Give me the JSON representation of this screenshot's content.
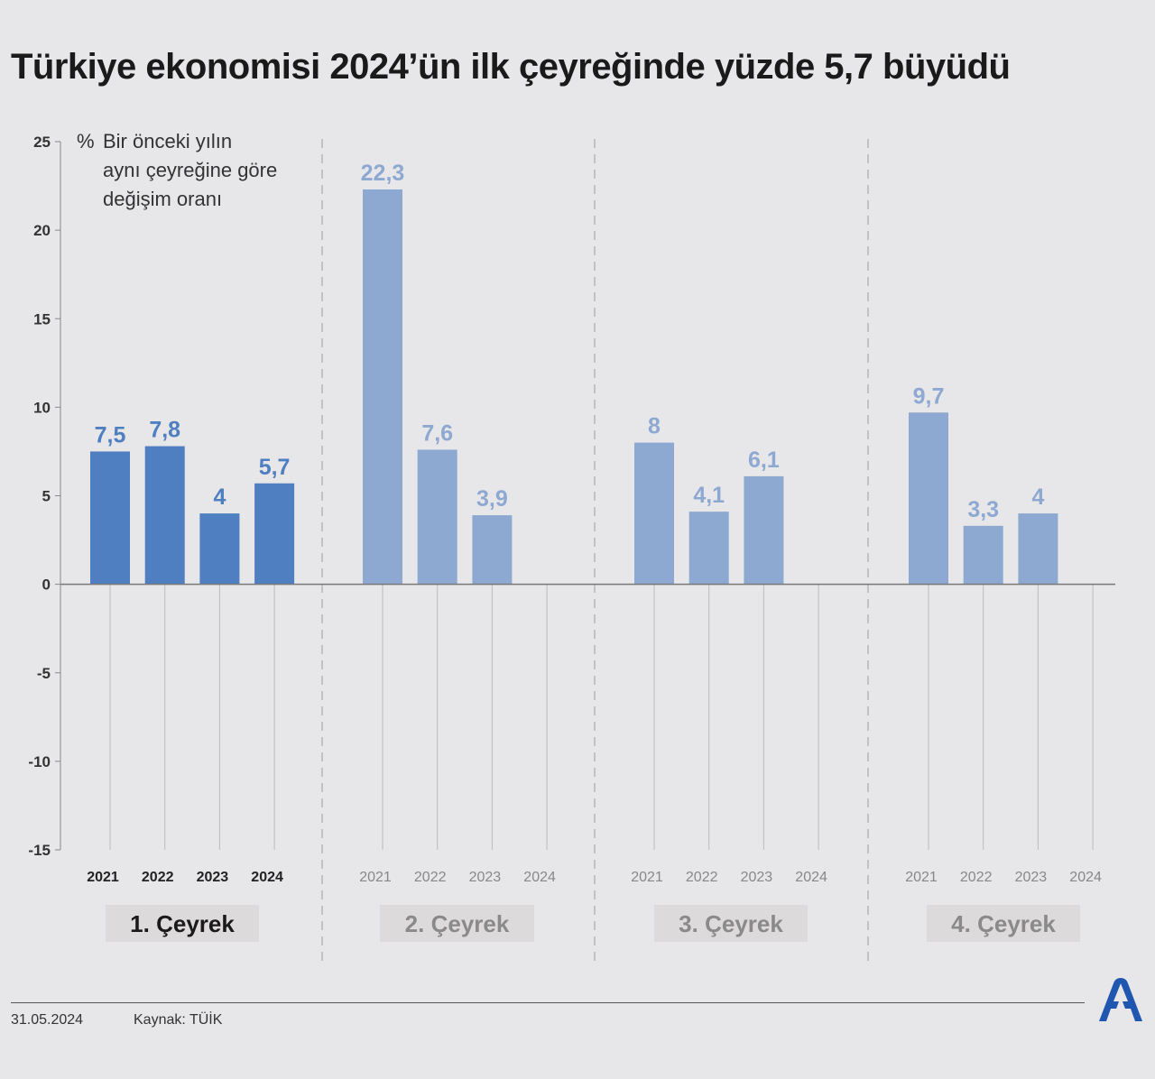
{
  "title": "Türkiye ekonomisi 2024’ün ilk çeyreğinde yüzde 5,7 büyüdü",
  "chart_data": {
    "type": "bar",
    "ylabel_prefix": "%",
    "ylabel_lines": [
      "Bir önceki yılın",
      "aynı çeyreğine göre",
      "değişim oranı"
    ],
    "ylim": [
      -15,
      25
    ],
    "yticks": [
      25,
      20,
      15,
      10,
      5,
      0,
      -5,
      -10,
      -15
    ],
    "years": [
      "2021",
      "2022",
      "2023",
      "2024"
    ],
    "groups": [
      {
        "label": "1. Çeyrek",
        "values": [
          7.5,
          7.8,
          4,
          5.7
        ],
        "value_labels": [
          "7,5",
          "7,8",
          "4",
          "5,7"
        ],
        "highlight": true
      },
      {
        "label": "2. Çeyrek",
        "values": [
          22.3,
          7.6,
          3.9,
          null
        ],
        "value_labels": [
          "22,3",
          "7,6",
          "3,9",
          ""
        ],
        "highlight": false
      },
      {
        "label": "3. Çeyrek",
        "values": [
          8,
          4.1,
          6.1,
          null
        ],
        "value_labels": [
          "8",
          "4,1",
          "6,1",
          ""
        ],
        "highlight": false
      },
      {
        "label": "4. Çeyrek",
        "values": [
          9.7,
          3.3,
          4,
          null
        ],
        "value_labels": [
          "9,7",
          "3,3",
          "4",
          ""
        ],
        "highlight": false
      }
    ],
    "colors": {
      "highlight_bar": "#4f7fc0",
      "bar": "#8ea9d1",
      "highlight_text": "#4f7fc0",
      "text": "#8ea9d1"
    },
    "grid": false,
    "legend": "none"
  },
  "footer": {
    "date": "31.05.2024",
    "source": "Kaynak: TÜİK"
  },
  "logo": {
    "icon": "aa-logo",
    "color": "#1f56b0"
  }
}
